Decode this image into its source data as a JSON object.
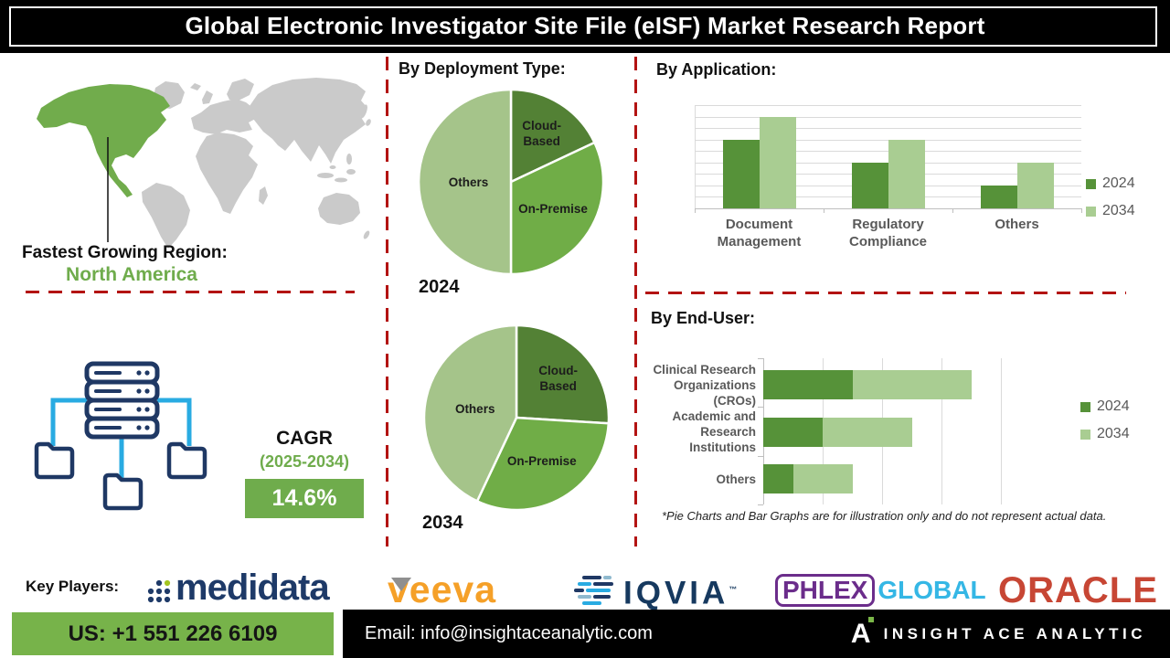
{
  "title": "Global Electronic Investigator Site File (eISF) Market Research Report",
  "region": {
    "label": "Fastest Growing Region:",
    "value": "North America"
  },
  "cagr": {
    "label": "CAGR",
    "period": "(2025-2034)",
    "value": "14.6%"
  },
  "colors": {
    "pie_dark": "#538135",
    "pie_mid": "#70AD47",
    "pie_light": "#A5C48A",
    "bar_2024": "#569239",
    "bar_2034": "#A9CD92",
    "dash_red": "#B31312",
    "navy": "#1F3864",
    "cyan": "#29ABE2",
    "footer_green": "#77B34A",
    "map_green": "#71AC4C",
    "map_gray": "#CACACA"
  },
  "chart_data": [
    {
      "id": "deployment_2024",
      "type": "pie",
      "title": "By Deployment Type:",
      "year_label": "2024",
      "slices": [
        {
          "label": "Cloud-Based",
          "label_lines": [
            "Cloud-",
            "Based"
          ],
          "value": 18,
          "color": "#538135"
        },
        {
          "label": "On-Premise",
          "label_lines": [
            "On-Premise"
          ],
          "value": 32,
          "color": "#70AD47"
        },
        {
          "label": "Others",
          "label_lines": [
            "Others"
          ],
          "value": 50,
          "color": "#A5C48A"
        }
      ]
    },
    {
      "id": "deployment_2034",
      "type": "pie",
      "title": "By Deployment Type:",
      "year_label": "2034",
      "slices": [
        {
          "label": "Cloud-Based",
          "label_lines": [
            "Cloud-",
            "Based"
          ],
          "value": 26,
          "color": "#538135"
        },
        {
          "label": "On-Premise",
          "label_lines": [
            "On-Premise"
          ],
          "value": 31,
          "color": "#70AD47"
        },
        {
          "label": "Others",
          "label_lines": [
            "Others"
          ],
          "value": 43,
          "color": "#A5C48A"
        }
      ]
    },
    {
      "id": "application",
      "type": "bar",
      "title": "By Application:",
      "categories": [
        "Document Management",
        "Regulatory Compliance",
        "Others"
      ],
      "categories_lines": [
        [
          "Document",
          "Management"
        ],
        [
          "Regulatory",
          "Compliance"
        ],
        [
          "Others"
        ]
      ],
      "series": [
        {
          "name": "2024",
          "color": "#569239",
          "values": [
            6,
            4,
            2
          ]
        },
        {
          "name": "2034",
          "color": "#A9CD92",
          "values": [
            8,
            6,
            4
          ]
        }
      ],
      "ylim": [
        0,
        9
      ],
      "grid": true,
      "legend_position": "right"
    },
    {
      "id": "end_user",
      "type": "stacked_hbar",
      "title": "By End-User:",
      "categories": [
        "Clinical Research Organizations (CROs)",
        "Academic and Research Institutions",
        "Others"
      ],
      "categories_lines": [
        [
          "Clinical Research",
          "Organizations",
          "(CROs)"
        ],
        [
          "Academic and",
          "Research",
          "Institutions"
        ],
        [
          "Others"
        ]
      ],
      "series": [
        {
          "name": "2024",
          "color": "#569239",
          "values": [
            1.5,
            1,
            0.5
          ]
        },
        {
          "name": "2034",
          "color": "#A9CD92",
          "values": [
            2,
            1.5,
            1
          ]
        }
      ],
      "xlim": [
        0,
        4
      ],
      "grid": true,
      "legend_position": "right"
    }
  ],
  "footnote": "*Pie Charts and Bar Graphs are for illustration only and do not represent actual data.",
  "key_players": {
    "label": "Key Players:",
    "items": [
      {
        "name": "medidata"
      },
      {
        "name": "veeva"
      },
      {
        "name": "IQVIA",
        "mark": "™"
      },
      {
        "name": "PHLEX",
        "name2": "GLOBAL"
      },
      {
        "name": "ORACLE"
      }
    ]
  },
  "footer": {
    "phone": "US: +1 551 226 6109",
    "email": "Email: info@insightaceanalytic.com",
    "brand_initial": "A",
    "brand": "INSIGHT ACE ANALYTIC"
  }
}
